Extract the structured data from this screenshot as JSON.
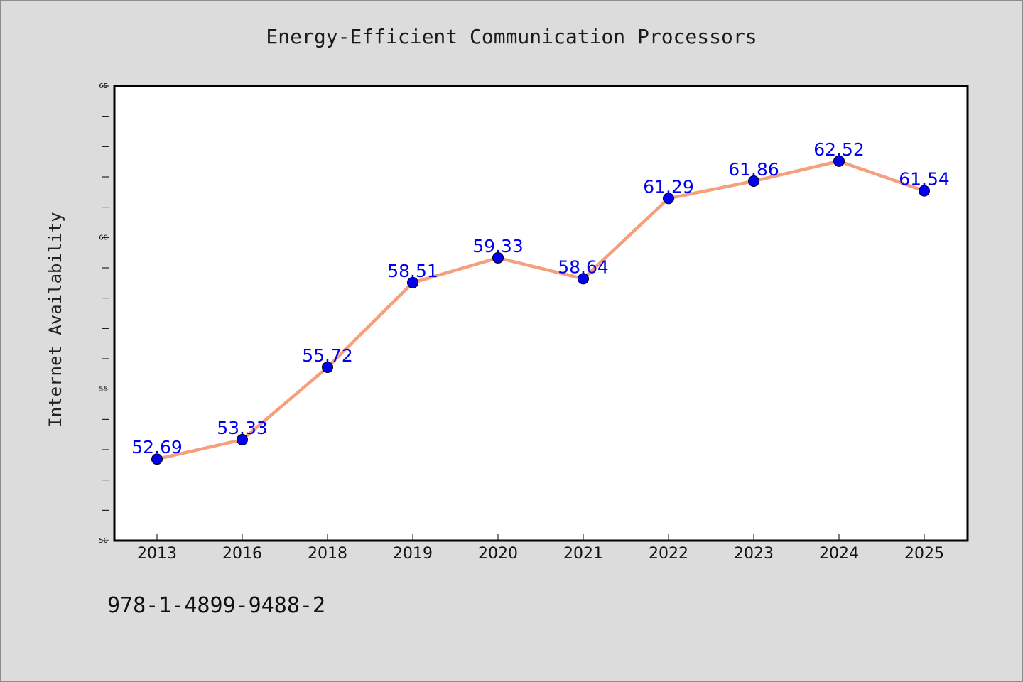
{
  "chart_data": {
    "type": "line",
    "title": "Energy-Efficient Communication Processors",
    "xlabel": "",
    "ylabel": "Internet Availability",
    "categories": [
      "2013",
      "2016",
      "2018",
      "2019",
      "2020",
      "2021",
      "2022",
      "2023",
      "2024",
      "2025"
    ],
    "series": [
      {
        "values": [
          52.69,
          53.33,
          55.72,
          58.51,
          59.33,
          58.64,
          61.29,
          61.86,
          62.52,
          61.54
        ],
        "labels": [
          "52.69",
          "53.33",
          "55.72",
          "58.51",
          "59.33",
          "58.64",
          "61.29",
          "61.86",
          "62.52",
          "61.54"
        ]
      }
    ],
    "ylim": [
      50,
      65
    ],
    "yticks": [
      "50",
      "55",
      "60",
      "65"
    ],
    "grid": false,
    "colors": {
      "line": "#f4a07c",
      "marker": "#0000ee",
      "label": "#0000ee",
      "background": "#dcdcdc",
      "plot_background": "#ffffff"
    }
  },
  "footer": {
    "code": "978-1-4899-9488-2"
  }
}
